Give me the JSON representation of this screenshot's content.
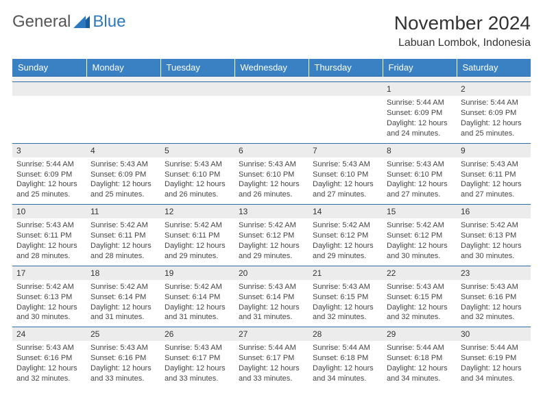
{
  "logo": {
    "text1": "General",
    "text2": "Blue"
  },
  "title": "November 2024",
  "location": "Labuan Lombok, Indonesia",
  "colors": {
    "header_bg": "#3a81c4",
    "header_text": "#ffffff",
    "border": "#2d6aa8",
    "daynum_bg": "#ececec",
    "logo_blue": "#2d79c0",
    "text": "#333333"
  },
  "day_headers": [
    "Sunday",
    "Monday",
    "Tuesday",
    "Wednesday",
    "Thursday",
    "Friday",
    "Saturday"
  ],
  "weeks": [
    [
      null,
      null,
      null,
      null,
      null,
      {
        "n": "1",
        "sr": "Sunrise: 5:44 AM",
        "ss": "Sunset: 6:09 PM",
        "d1": "Daylight: 12 hours",
        "d2": "and 24 minutes."
      },
      {
        "n": "2",
        "sr": "Sunrise: 5:44 AM",
        "ss": "Sunset: 6:09 PM",
        "d1": "Daylight: 12 hours",
        "d2": "and 25 minutes."
      }
    ],
    [
      {
        "n": "3",
        "sr": "Sunrise: 5:44 AM",
        "ss": "Sunset: 6:09 PM",
        "d1": "Daylight: 12 hours",
        "d2": "and 25 minutes."
      },
      {
        "n": "4",
        "sr": "Sunrise: 5:43 AM",
        "ss": "Sunset: 6:09 PM",
        "d1": "Daylight: 12 hours",
        "d2": "and 25 minutes."
      },
      {
        "n": "5",
        "sr": "Sunrise: 5:43 AM",
        "ss": "Sunset: 6:10 PM",
        "d1": "Daylight: 12 hours",
        "d2": "and 26 minutes."
      },
      {
        "n": "6",
        "sr": "Sunrise: 5:43 AM",
        "ss": "Sunset: 6:10 PM",
        "d1": "Daylight: 12 hours",
        "d2": "and 26 minutes."
      },
      {
        "n": "7",
        "sr": "Sunrise: 5:43 AM",
        "ss": "Sunset: 6:10 PM",
        "d1": "Daylight: 12 hours",
        "d2": "and 27 minutes."
      },
      {
        "n": "8",
        "sr": "Sunrise: 5:43 AM",
        "ss": "Sunset: 6:10 PM",
        "d1": "Daylight: 12 hours",
        "d2": "and 27 minutes."
      },
      {
        "n": "9",
        "sr": "Sunrise: 5:43 AM",
        "ss": "Sunset: 6:11 PM",
        "d1": "Daylight: 12 hours",
        "d2": "and 27 minutes."
      }
    ],
    [
      {
        "n": "10",
        "sr": "Sunrise: 5:43 AM",
        "ss": "Sunset: 6:11 PM",
        "d1": "Daylight: 12 hours",
        "d2": "and 28 minutes."
      },
      {
        "n": "11",
        "sr": "Sunrise: 5:42 AM",
        "ss": "Sunset: 6:11 PM",
        "d1": "Daylight: 12 hours",
        "d2": "and 28 minutes."
      },
      {
        "n": "12",
        "sr": "Sunrise: 5:42 AM",
        "ss": "Sunset: 6:11 PM",
        "d1": "Daylight: 12 hours",
        "d2": "and 29 minutes."
      },
      {
        "n": "13",
        "sr": "Sunrise: 5:42 AM",
        "ss": "Sunset: 6:12 PM",
        "d1": "Daylight: 12 hours",
        "d2": "and 29 minutes."
      },
      {
        "n": "14",
        "sr": "Sunrise: 5:42 AM",
        "ss": "Sunset: 6:12 PM",
        "d1": "Daylight: 12 hours",
        "d2": "and 29 minutes."
      },
      {
        "n": "15",
        "sr": "Sunrise: 5:42 AM",
        "ss": "Sunset: 6:12 PM",
        "d1": "Daylight: 12 hours",
        "d2": "and 30 minutes."
      },
      {
        "n": "16",
        "sr": "Sunrise: 5:42 AM",
        "ss": "Sunset: 6:13 PM",
        "d1": "Daylight: 12 hours",
        "d2": "and 30 minutes."
      }
    ],
    [
      {
        "n": "17",
        "sr": "Sunrise: 5:42 AM",
        "ss": "Sunset: 6:13 PM",
        "d1": "Daylight: 12 hours",
        "d2": "and 30 minutes."
      },
      {
        "n": "18",
        "sr": "Sunrise: 5:42 AM",
        "ss": "Sunset: 6:14 PM",
        "d1": "Daylight: 12 hours",
        "d2": "and 31 minutes."
      },
      {
        "n": "19",
        "sr": "Sunrise: 5:42 AM",
        "ss": "Sunset: 6:14 PM",
        "d1": "Daylight: 12 hours",
        "d2": "and 31 minutes."
      },
      {
        "n": "20",
        "sr": "Sunrise: 5:43 AM",
        "ss": "Sunset: 6:14 PM",
        "d1": "Daylight: 12 hours",
        "d2": "and 31 minutes."
      },
      {
        "n": "21",
        "sr": "Sunrise: 5:43 AM",
        "ss": "Sunset: 6:15 PM",
        "d1": "Daylight: 12 hours",
        "d2": "and 32 minutes."
      },
      {
        "n": "22",
        "sr": "Sunrise: 5:43 AM",
        "ss": "Sunset: 6:15 PM",
        "d1": "Daylight: 12 hours",
        "d2": "and 32 minutes."
      },
      {
        "n": "23",
        "sr": "Sunrise: 5:43 AM",
        "ss": "Sunset: 6:16 PM",
        "d1": "Daylight: 12 hours",
        "d2": "and 32 minutes."
      }
    ],
    [
      {
        "n": "24",
        "sr": "Sunrise: 5:43 AM",
        "ss": "Sunset: 6:16 PM",
        "d1": "Daylight: 12 hours",
        "d2": "and 32 minutes."
      },
      {
        "n": "25",
        "sr": "Sunrise: 5:43 AM",
        "ss": "Sunset: 6:16 PM",
        "d1": "Daylight: 12 hours",
        "d2": "and 33 minutes."
      },
      {
        "n": "26",
        "sr": "Sunrise: 5:43 AM",
        "ss": "Sunset: 6:17 PM",
        "d1": "Daylight: 12 hours",
        "d2": "and 33 minutes."
      },
      {
        "n": "27",
        "sr": "Sunrise: 5:44 AM",
        "ss": "Sunset: 6:17 PM",
        "d1": "Daylight: 12 hours",
        "d2": "and 33 minutes."
      },
      {
        "n": "28",
        "sr": "Sunrise: 5:44 AM",
        "ss": "Sunset: 6:18 PM",
        "d1": "Daylight: 12 hours",
        "d2": "and 34 minutes."
      },
      {
        "n": "29",
        "sr": "Sunrise: 5:44 AM",
        "ss": "Sunset: 6:18 PM",
        "d1": "Daylight: 12 hours",
        "d2": "and 34 minutes."
      },
      {
        "n": "30",
        "sr": "Sunrise: 5:44 AM",
        "ss": "Sunset: 6:19 PM",
        "d1": "Daylight: 12 hours",
        "d2": "and 34 minutes."
      }
    ]
  ]
}
